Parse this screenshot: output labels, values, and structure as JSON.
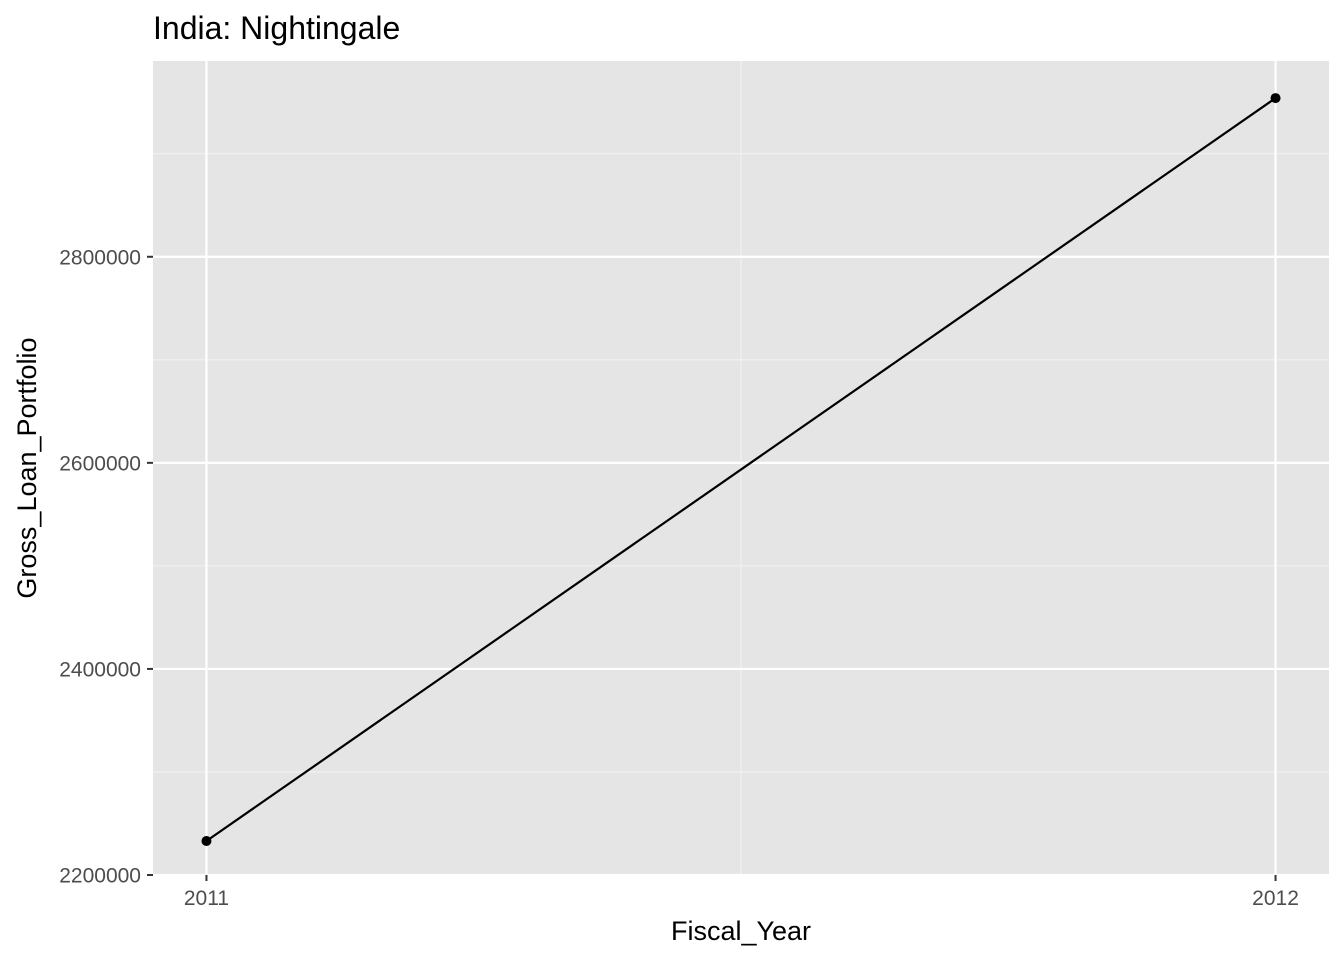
{
  "chart_data": {
    "type": "line",
    "title": "India:  Nightingale",
    "xlabel": "Fiscal_Year",
    "ylabel": "Gross_Loan_Portfolio",
    "x": [
      2011,
      2012
    ],
    "series": [
      {
        "values": [
          2233000,
          2954000
        ]
      }
    ],
    "x_ticks": [
      "2011",
      "2012"
    ],
    "y_ticks": [
      "2200000",
      "2400000",
      "2600000",
      "2800000"
    ],
    "xlim": [
      2010.95,
      2012.05
    ],
    "ylim": [
      2200000,
      2990000
    ],
    "grid": true,
    "legend": "none",
    "colors": {
      "panel_background": "#e5e5e5",
      "grid_major": "#ffffff",
      "grid_minor": "#f2f2f2",
      "line": "#000000",
      "point": "#000000",
      "tick_text": "#4d4d4d",
      "tick_mark": "#333333"
    }
  }
}
